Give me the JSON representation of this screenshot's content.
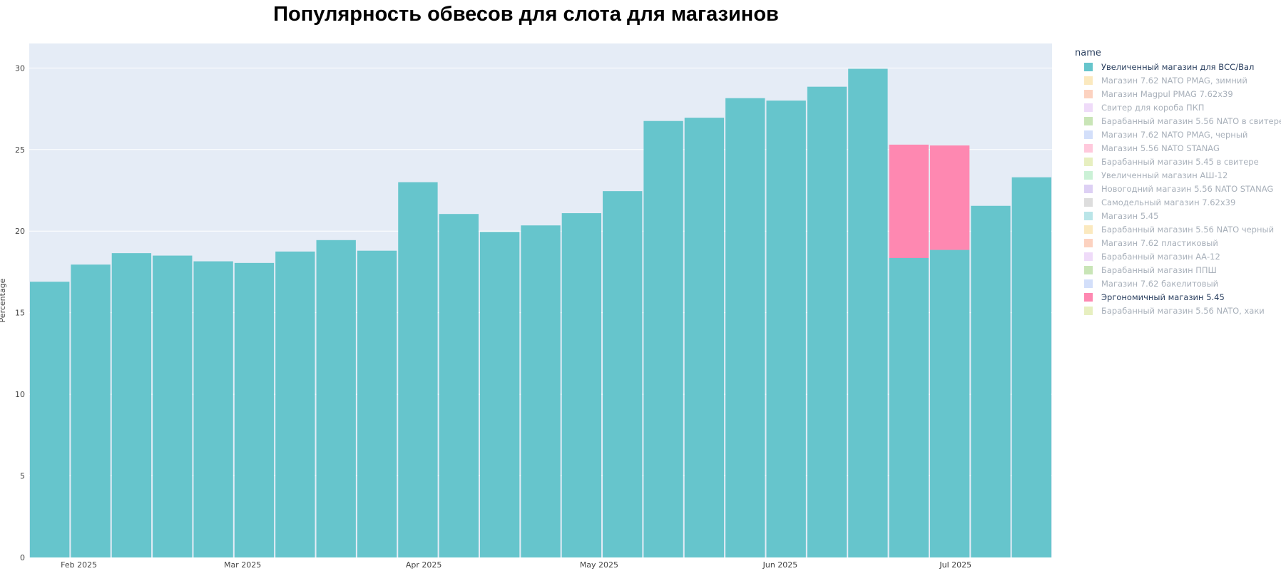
{
  "chart_data": {
    "type": "bar",
    "barmode": "stack",
    "title": "Популярность обвесов для слота для магазинов",
    "ylabel": "Percentage",
    "xlabel": "",
    "ylim": [
      0,
      31.5
    ],
    "y_ticks": [
      0,
      5,
      10,
      15,
      20,
      25,
      30
    ],
    "x_ticks": [
      {
        "label": "Feb 2025",
        "at": "2025-02-01"
      },
      {
        "label": "Mar 2025",
        "at": "2025-03-01"
      },
      {
        "label": "Apr 2025",
        "at": "2025-04-01"
      },
      {
        "label": "May 2025",
        "at": "2025-05-01"
      },
      {
        "label": "Jun 2025",
        "at": "2025-06-01"
      },
      {
        "label": "Jul 2025",
        "at": "2025-07-01"
      }
    ],
    "x": [
      "2025-01-27",
      "2025-02-03",
      "2025-02-10",
      "2025-02-17",
      "2025-02-24",
      "2025-03-03",
      "2025-03-10",
      "2025-03-17",
      "2025-03-24",
      "2025-03-31",
      "2025-04-07",
      "2025-04-14",
      "2025-04-21",
      "2025-04-28",
      "2025-05-05",
      "2025-05-12",
      "2025-05-19",
      "2025-05-26",
      "2025-06-02",
      "2025-06-09",
      "2025-06-16",
      "2025-06-23",
      "2025-06-30",
      "2025-07-07",
      "2025-07-14"
    ],
    "grid": true,
    "legend_title": "name",
    "legend_position": "right",
    "series": [
      {
        "name": "Увеличенный магазин для ВСС/Вал",
        "color": "#66c5cc",
        "visible": true,
        "values": [
          16.9,
          17.95,
          18.65,
          18.5,
          18.15,
          18.05,
          18.75,
          19.45,
          18.8,
          23.0,
          21.05,
          19.95,
          20.35,
          21.1,
          22.45,
          26.75,
          26.95,
          28.15,
          28.0,
          28.85,
          29.95,
          18.35,
          18.85,
          21.55,
          23.3
        ]
      },
      {
        "name": "Магазин 7.62 NATO PMAG, зимний",
        "color": "#f6cf71",
        "visible": false
      },
      {
        "name": "Магазин Magpul PMAG 7.62x39",
        "color": "#f89c74",
        "visible": false
      },
      {
        "name": "Свитер для короба ПКП",
        "color": "#dcb0f2",
        "visible": false
      },
      {
        "name": "Барабанный магазин 5.56 NATO в свитере",
        "color": "#87c55f",
        "visible": false
      },
      {
        "name": "Магазин 7.62 NATO PMAG, черный",
        "color": "#9eb9f3",
        "visible": false
      },
      {
        "name": "Магазин 5.56 NATO STANAG",
        "color": "#fe88b1",
        "visible": false
      },
      {
        "name": "Барабанный магазин 5.45 в свитере",
        "color": "#c9db74",
        "visible": false
      },
      {
        "name": "Увеличенный магазин АШ-12",
        "color": "#8be0a4",
        "visible": false
      },
      {
        "name": "Новогодний магазин 5.56 NATO STANAG",
        "color": "#b497e7",
        "visible": false
      },
      {
        "name": "Самодельный магазин 7.62x39",
        "color": "#b3b3b3",
        "visible": false
      },
      {
        "name": "Магазин 5.45",
        "color": "#66c5cc",
        "visible": false
      },
      {
        "name": "Барабанный магазин 5.56 NATO черный",
        "color": "#f6cf71",
        "visible": false
      },
      {
        "name": "Магазин 7.62 пластиковый",
        "color": "#f89c74",
        "visible": false
      },
      {
        "name": "Барабанный магазин АА-12",
        "color": "#dcb0f2",
        "visible": false
      },
      {
        "name": "Барабанный магазин ППШ",
        "color": "#87c55f",
        "visible": false
      },
      {
        "name": "Магазин 7.62 бакелитовый",
        "color": "#9eb9f3",
        "visible": false
      },
      {
        "name": "Эргономичный магазин 5.45",
        "color": "#fe88b1",
        "visible": true,
        "values": [
          0,
          0,
          0,
          0,
          0,
          0,
          0,
          0,
          0,
          0,
          0,
          0,
          0,
          0,
          0,
          0,
          0,
          0,
          0,
          0,
          0,
          6.95,
          6.4,
          0,
          0
        ]
      },
      {
        "name": "Барабанный магазин 5.56 NATO, хаки",
        "color": "#c9db74",
        "visible": false
      }
    ]
  }
}
